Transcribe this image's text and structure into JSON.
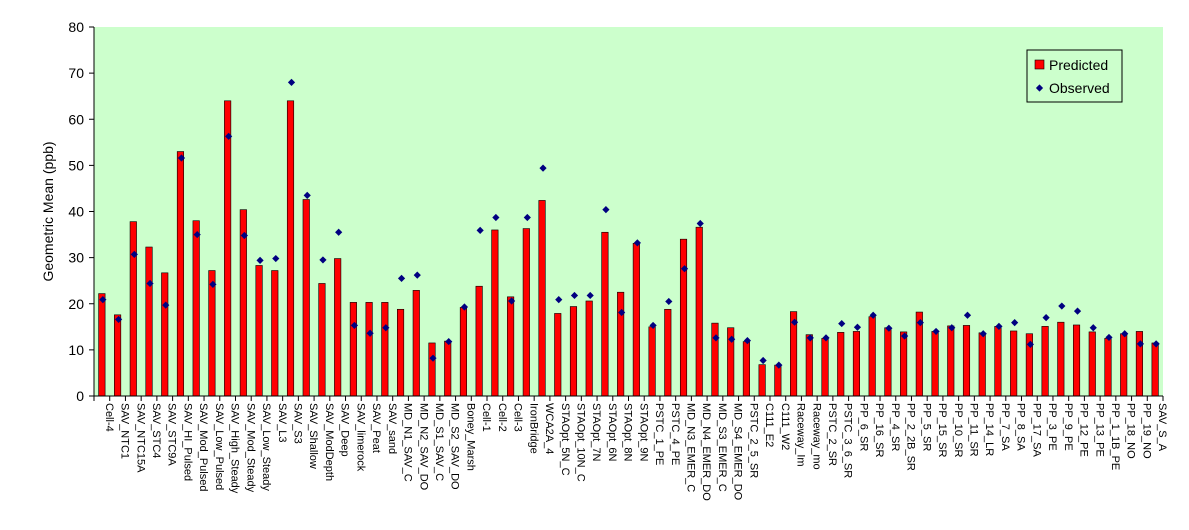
{
  "colors": {
    "plot_background": "#ccffcc",
    "predicted": "#ff0000",
    "observed": "#000080",
    "bar_outline": "#000000"
  },
  "chart_data": {
    "type": "bar",
    "title": "",
    "xlabel": "",
    "ylabel": "Geometric Mean (ppb)",
    "ylim": [
      0,
      80
    ],
    "yticks": [
      0,
      10,
      20,
      30,
      40,
      50,
      60,
      70,
      80
    ],
    "grid": false,
    "legend_position": "top-right",
    "categories": [
      "Cell-4",
      "SAV_NTC1",
      "SAV_NTC15A",
      "SAV_STC4",
      "SAV_STC9A",
      "SAV_HI_Pulsed",
      "SAV_Mod_Pulsed",
      "SAV_Low_Pulsed",
      "SAV_High_Steady",
      "SAV_Mod_Steady",
      "SAV_Low_Steady",
      "SAV_L3",
      "SAV_S3",
      "SAV_Shallow",
      "SAV_ModDepth",
      "SAV_Deep",
      "SAV_limerock",
      "SAV_Peat",
      "SAV_sand",
      "MD_N1_SAV_C",
      "MD_N2_SAV_DO",
      "MD_S1_SAV_C",
      "MD_S2_SAV_DO",
      "Boney_Marsh",
      "Cell-1",
      "Cell-2",
      "Cell-3",
      "IronBridge",
      "WCA2A_4",
      "STAOpt_5N_C",
      "STAOpt_10N_C",
      "STAOpt_7N",
      "STAOpt_6N",
      "STAOpt_8N",
      "STAOpt_9N",
      "PSTC_1_PE",
      "PSTC_4_PE",
      "MD_N3_EMER_C",
      "MD_N4_EMER_DO",
      "MD_S3_EMER_C",
      "MD_S4_EMER_DO",
      "PSTC_2_5_SR",
      "C111_E2",
      "C111_W2",
      "Raceway_Im",
      "Raceway_mo",
      "PSTC_2_SR",
      "PSTC_3_6_SR",
      "PP_6_SR",
      "PP_16_SR",
      "PP_4_SR",
      "PP_2_2B_SR",
      "PP_5_SR",
      "PP_15_SR",
      "PP_10_SR",
      "PP_11_SR",
      "PP_14_LR",
      "PP_7_SA",
      "PP_8_SA",
      "PP_17_SA",
      "PP_3_PE",
      "PP_9_PE",
      "PP_12_PE",
      "PP_13_PE",
      "PP_1_1B_PE",
      "PP_18_NO",
      "PP_19_NO",
      "SAV_S_A"
    ],
    "series": [
      {
        "name": "Predicted",
        "type": "bar",
        "values": [
          22.2,
          17.6,
          37.8,
          32.3,
          26.7,
          53,
          38,
          27.2,
          64,
          40.4,
          28.3,
          27.2,
          64,
          42.6,
          24.4,
          29.8,
          20.3,
          20.3,
          20.3,
          18.8,
          22.9,
          11.5,
          11.9,
          19.2,
          23.8,
          36,
          21.5,
          36.3,
          42.4,
          17.9,
          19.4,
          20.6,
          35.5,
          22.5,
          33.1,
          15,
          18.8,
          34,
          36.6,
          15.8,
          14.8,
          11.8,
          6.8,
          6.7,
          18.3,
          13.3,
          12.5,
          13.8,
          14,
          17.2,
          14.8,
          13.9,
          18.2,
          14,
          15.2,
          15.3,
          13.7,
          15.1,
          14.1,
          13.5,
          15.1,
          16,
          15.4,
          13.9,
          12.5,
          13.5,
          14,
          11.5
        ]
      },
      {
        "name": "Observed",
        "type": "scatter",
        "values": [
          20.9,
          16.6,
          30.7,
          24.4,
          19.7,
          51.6,
          35,
          24.2,
          56.3,
          34.8,
          29.4,
          29.8,
          68,
          43.5,
          29.5,
          35.5,
          15.3,
          13.6,
          14.8,
          25.5,
          26.2,
          8.2,
          11.8,
          19.3,
          35.9,
          38.7,
          20.6,
          38.7,
          49.4,
          20.9,
          21.8,
          21.8,
          40.4,
          18.1,
          33.2,
          15.3,
          20.5,
          27.6,
          37.4,
          12.6,
          12.3,
          12,
          7.7,
          6.7,
          16,
          12.6,
          12.6,
          15.7,
          14.9,
          17.5,
          14.7,
          13,
          15.9,
          14,
          14.8,
          17.5,
          13.5,
          15.1,
          15.9,
          11.2,
          17,
          19.5,
          18.4,
          14.8,
          12.7,
          13.5,
          11.3,
          11.3
        ]
      }
    ]
  }
}
